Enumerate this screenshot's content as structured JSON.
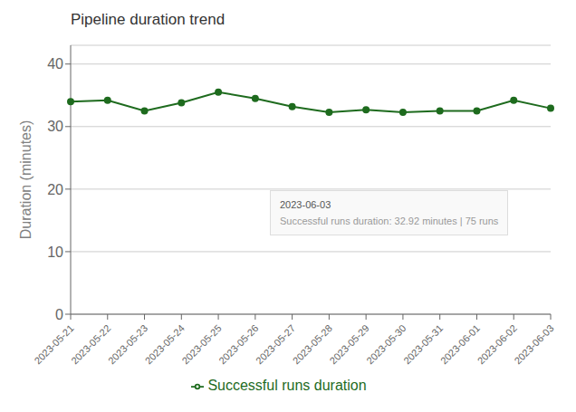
{
  "chart_data": {
    "type": "line",
    "title": "Pipeline duration trend",
    "y_label": "Duration (minutes)",
    "x": [
      "2023-05-21",
      "2023-05-22",
      "2023-05-23",
      "2023-05-24",
      "2023-05-25",
      "2023-05-26",
      "2023-05-27",
      "2023-05-28",
      "2023-05-29",
      "2023-05-30",
      "2023-05-31",
      "2023-06-01",
      "2023-06-02",
      "2023-06-03"
    ],
    "series": [
      {
        "name": "Successful runs duration",
        "color": "#1e6b1e",
        "marker": "circle",
        "values": [
          34.0,
          34.2,
          32.5,
          33.8,
          35.5,
          34.5,
          33.2,
          32.3,
          32.7,
          32.3,
          32.5,
          32.5,
          34.2,
          32.92
        ]
      }
    ],
    "ylim": [
      0,
      43
    ],
    "yticks": [
      0,
      10,
      20,
      30,
      40
    ],
    "grid": true,
    "legend": "bottom",
    "annotations": [
      "2023-06-03",
      "Successful runs duration: 32.92 minutes | 75 runs"
    ]
  }
}
